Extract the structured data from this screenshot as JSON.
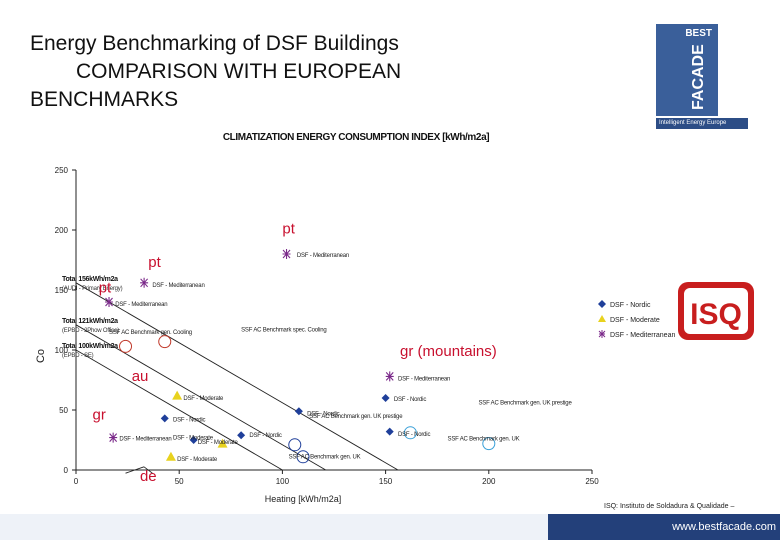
{
  "slide": {
    "title_line1": "Energy Benchmarking of DSF Buildings",
    "title_line2": "COMPARISON WITH EUROPEAN",
    "title_line3": "BENCHMARKS",
    "logo_best": "BEST",
    "logo_facade": "FACADE",
    "logo_sub": "Intelligent Energy Europe",
    "isq_logo": "ISQ",
    "isq_note": "ISQ: Instituto de Soldadura & Qualidade –",
    "footer_url": "www.bestfacade.com"
  },
  "colors": {
    "nordic": "#1f3f9a",
    "moderate": "#e8d21e",
    "mediterranean": "#7b2a8a",
    "isq_red": "#c81e1e",
    "footer": "#23407a"
  },
  "chart_data": {
    "type": "scatter",
    "title": "CLIMATIZATION ENERGY CONSUMPTION INDEX [kWh/m2a]",
    "xlabel": "Heating [kWh/m2a]",
    "ylabel": "Co",
    "xlim": [
      0,
      250
    ],
    "ylim": [
      0,
      250
    ],
    "xticks": [
      "0",
      "50",
      "100",
      "150",
      "200",
      "250"
    ],
    "yticks": [
      "0",
      "50",
      "100",
      "150",
      "200",
      "250"
    ],
    "legend_placement": "right",
    "series": [
      {
        "name": "DSF - Nordic",
        "marker": "diamond",
        "points": [
          {
            "x": 43,
            "y": 43,
            "label": "DSF - Nordic"
          },
          {
            "x": 108,
            "y": 49,
            "label": "DSF - Nordic"
          },
          {
            "x": 150,
            "y": 60,
            "label": "DSF - Nordic"
          },
          {
            "x": 152,
            "y": 32,
            "label": "DSF - Nordic"
          },
          {
            "x": 80,
            "y": 29,
            "label": "DSF - Nordic"
          },
          {
            "x": 57,
            "y": 25,
            "label": "DSF - Moderate"
          }
        ]
      },
      {
        "name": "DSF - Moderate",
        "marker": "triangle",
        "points": [
          {
            "x": 49,
            "y": 62,
            "label": "DSF - Moderate"
          },
          {
            "x": 71,
            "y": 22,
            "label": "DSF - Moderate"
          },
          {
            "x": 46,
            "y": 11,
            "label": "DSF - Moderate"
          }
        ]
      },
      {
        "name": "DSF - Mediterranean",
        "marker": "star",
        "points": [
          {
            "x": 102,
            "y": 180,
            "label": "DSF - Mediterranean"
          },
          {
            "x": 33,
            "y": 156,
            "label": "DSF - Mediterranean"
          },
          {
            "x": 16,
            "y": 140,
            "label": "DSF - Mediterranean"
          },
          {
            "x": 152,
            "y": 78,
            "label": "DSF - Mediterranean"
          },
          {
            "x": 18,
            "y": 27,
            "label": "DSF - Mediterranean"
          }
        ]
      },
      {
        "name": "SSF AC Benchmarks",
        "marker": "circle",
        "points": [
          {
            "x": 24,
            "y": 103,
            "color": "#c0392b",
            "label": ""
          },
          {
            "x": 43,
            "y": 107,
            "color": "#c0392b",
            "label": ""
          },
          {
            "x": 106,
            "y": 21,
            "color": "#1f3f9a",
            "label": ""
          },
          {
            "x": 110,
            "y": 11,
            "color": "#1f3f9a",
            "label": ""
          },
          {
            "x": 162,
            "y": 31,
            "color": "#3aa0d8",
            "label": ""
          },
          {
            "x": 200,
            "y": 22,
            "color": "#3aa0d8",
            "label": ""
          }
        ]
      }
    ],
    "point_labels": [
      {
        "x": 107,
        "y": 180,
        "text": "DSF - Mediterranean"
      },
      {
        "x": 37,
        "y": 155,
        "text": "DSF - Mediterranean"
      },
      {
        "x": 19,
        "y": 139,
        "text": "DSF - Mediterranean"
      },
      {
        "x": 156,
        "y": 77,
        "text": "DSF - Mediterranean"
      },
      {
        "x": 154,
        "y": 60,
        "text": "DSF - Nordic"
      },
      {
        "x": 112,
        "y": 48,
        "text": "DSF - Nordic"
      },
      {
        "x": 47,
        "y": 43,
        "text": "DSF - Nordic"
      },
      {
        "x": 52,
        "y": 61,
        "text": "DSF - Moderate"
      },
      {
        "x": 156,
        "y": 31,
        "text": "DSF - Nordic"
      },
      {
        "x": 21,
        "y": 27,
        "text": "DSF - Mediterranean"
      },
      {
        "x": 47,
        "y": 28,
        "text": "DSF - Moderate"
      },
      {
        "x": 59,
        "y": 24,
        "text": "DSF - Moderate"
      },
      {
        "x": 84,
        "y": 30,
        "text": "DSF - Nordic"
      },
      {
        "x": 49,
        "y": 10,
        "text": "DSF - Moderate"
      },
      {
        "x": 80,
        "y": 118,
        "text": "SSF AC Benchmark spec. Cooling"
      },
      {
        "x": 16,
        "y": 116,
        "text": "SSF AC Benchmark gen. Cooling"
      },
      {
        "x": 113,
        "y": 46,
        "text": "SSF AC Benchmark gen. UK prestige"
      },
      {
        "x": 195,
        "y": 57,
        "text": "SSF AC Benchmark gen. UK prestige"
      },
      {
        "x": 180,
        "y": 27,
        "text": "SSF AC Benchmark gen. UK"
      },
      {
        "x": 103,
        "y": 12,
        "text": "SSF AC Benchmark gen. UK"
      }
    ],
    "benchmark_lines": [
      {
        "label": "Total 156kWh/m2a",
        "sublabel": "(AUDI - Primary Energy)",
        "from": [
          0,
          156
        ],
        "to": [
          156,
          0
        ]
      },
      {
        "label": "Total 121kWh/m2a",
        "sublabel": "(EPBD - 2Phow Office)",
        "from": [
          0,
          121
        ],
        "to": [
          121,
          0
        ]
      },
      {
        "label": "Total 100kWh/m2a",
        "sublabel": "(EPBD - SE)",
        "from": [
          0,
          100
        ],
        "to": [
          100,
          0
        ]
      }
    ],
    "annotations": [
      {
        "x": 100,
        "y": 197,
        "text": "pt"
      },
      {
        "x": 35,
        "y": 169,
        "text": "pt"
      },
      {
        "x": 11,
        "y": 148,
        "text": "pt"
      },
      {
        "x": 157,
        "y": 95,
        "text": "gr (mountains)"
      },
      {
        "x": 27,
        "y": 74,
        "text": "au"
      },
      {
        "x": 8,
        "y": 42,
        "text": "gr"
      },
      {
        "x": 31,
        "y": -9,
        "text": "de"
      }
    ]
  }
}
